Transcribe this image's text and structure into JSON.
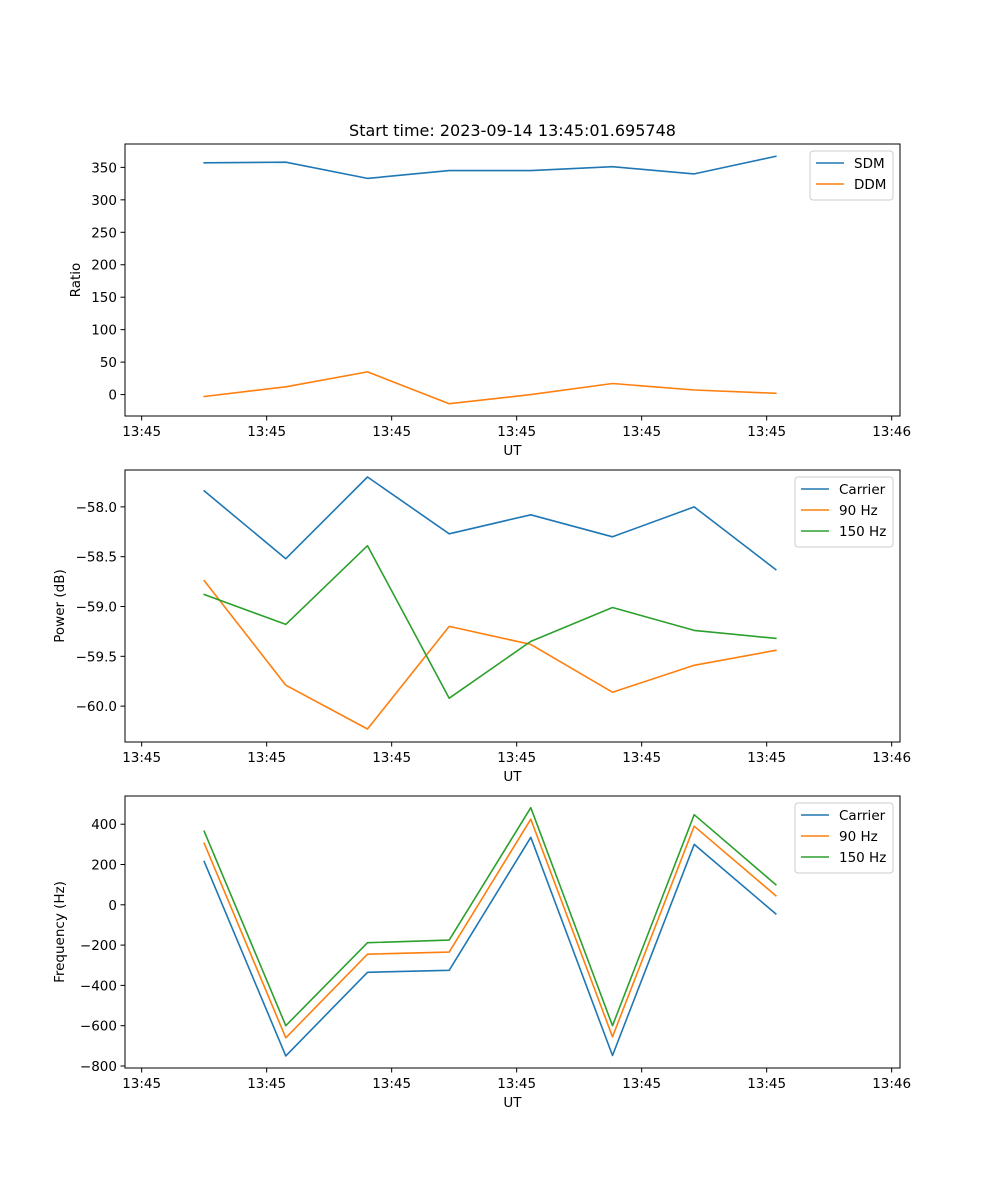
{
  "chart_data": [
    {
      "type": "line",
      "title": "Start time: 2023-09-14 13:45:01.695748",
      "xlabel": "UT",
      "ylabel": "Ratio",
      "xlim": [
        -0.2,
        9.1
      ],
      "ylim": [
        -33,
        386
      ],
      "xticks": [
        0,
        1.5,
        3,
        4.5,
        6,
        7.5,
        9
      ],
      "xtick_labels": [
        "13:45",
        "13:45",
        "13:45",
        "13:45",
        "13:45",
        "13:45",
        "13:46"
      ],
      "yticks": [
        0,
        50,
        100,
        150,
        200,
        250,
        300,
        350
      ],
      "ytick_labels": [
        "0",
        "50",
        "100",
        "150",
        "200",
        "250",
        "300",
        "350"
      ],
      "x": [
        0.75,
        1.73,
        2.71,
        3.69,
        4.67,
        5.65,
        6.63,
        7.61
      ],
      "series": [
        {
          "name": "SDM",
          "color": "#1f77b4",
          "values": [
            357,
            358,
            333,
            345,
            345,
            351,
            340,
            367
          ]
        },
        {
          "name": "DDM",
          "color": "#ff7f0e",
          "values": [
            -3,
            12,
            35,
            -14,
            0,
            17,
            7,
            2
          ]
        }
      ],
      "legend": "top-right"
    },
    {
      "type": "line",
      "title": "",
      "xlabel": "UT",
      "ylabel": "Power (dB)",
      "xlim": [
        -0.2,
        9.1
      ],
      "ylim": [
        -60.36,
        -57.63
      ],
      "xticks": [
        0,
        1.5,
        3,
        4.5,
        6,
        7.5,
        9
      ],
      "xtick_labels": [
        "13:45",
        "13:45",
        "13:45",
        "13:45",
        "13:45",
        "13:45",
        "13:46"
      ],
      "yticks": [
        -60.0,
        -59.5,
        -59.0,
        -58.5,
        -58.0
      ],
      "ytick_labels": [
        "−60.0",
        "−59.5",
        "−59.0",
        "−58.5",
        "−58.0"
      ],
      "x": [
        0.75,
        1.73,
        2.71,
        3.69,
        4.67,
        5.65,
        6.63,
        7.61
      ],
      "series": [
        {
          "name": "Carrier",
          "color": "#1f77b4",
          "values": [
            -57.84,
            -58.52,
            -57.7,
            -58.27,
            -58.08,
            -58.3,
            -58.0,
            -58.63
          ]
        },
        {
          "name": "90 Hz",
          "color": "#ff7f0e",
          "values": [
            -58.74,
            -59.79,
            -60.23,
            -59.2,
            -59.38,
            -59.86,
            -59.59,
            -59.44
          ]
        },
        {
          "name": "150 Hz",
          "color": "#2ca02c",
          "values": [
            -58.88,
            -59.18,
            -58.39,
            -59.92,
            -59.35,
            -59.01,
            -59.24,
            -59.32
          ]
        }
      ],
      "legend": "top-right"
    },
    {
      "type": "line",
      "title": "",
      "xlabel": "UT",
      "ylabel": "Frequency (Hz)",
      "xlim": [
        -0.2,
        9.1
      ],
      "ylim": [
        -810,
        540
      ],
      "xticks": [
        0,
        1.5,
        3,
        4.5,
        6,
        7.5,
        9
      ],
      "xtick_labels": [
        "13:45",
        "13:45",
        "13:45",
        "13:45",
        "13:45",
        "13:45",
        "13:46"
      ],
      "yticks": [
        -800,
        -600,
        -400,
        -200,
        0,
        200,
        400
      ],
      "ytick_labels": [
        "−800",
        "−600",
        "−400",
        "−200",
        "0",
        "200",
        "400"
      ],
      "x": [
        0.75,
        1.73,
        2.71,
        3.69,
        4.67,
        5.65,
        6.63,
        7.61
      ],
      "series": [
        {
          "name": "Carrier",
          "color": "#1f77b4",
          "values": [
            215,
            -750,
            -335,
            -325,
            335,
            -748,
            300,
            -45
          ]
        },
        {
          "name": "90 Hz",
          "color": "#ff7f0e",
          "values": [
            305,
            -660,
            -245,
            -235,
            425,
            -655,
            390,
            45
          ]
        },
        {
          "name": "150 Hz",
          "color": "#2ca02c",
          "values": [
            365,
            -600,
            -188,
            -175,
            482,
            -600,
            447,
            100
          ]
        }
      ],
      "legend": "top-right"
    }
  ]
}
